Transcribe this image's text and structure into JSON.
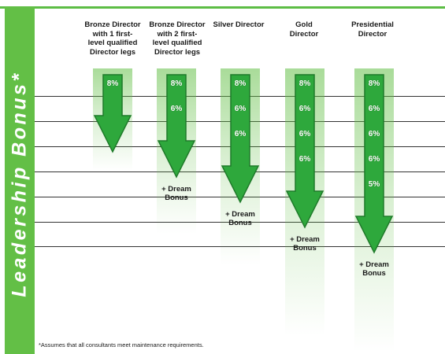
{
  "sidebar": {
    "title": "Leadership Bonus*"
  },
  "columns": [
    {
      "heading": "Bronze Director with 1 first-level qualified Director legs",
      "heading_lines": [
        "Bronze Director",
        "with 1 first-",
        "level qualified",
        "Director legs"
      ],
      "percentages": [
        "8%"
      ],
      "dream_bonus": ""
    },
    {
      "heading": "Bronze Director with 2 first-level qualified Director legs",
      "heading_lines": [
        "Bronze Director",
        "with 2 first-",
        "level qualified",
        "Director legs"
      ],
      "percentages": [
        "8%",
        "6%"
      ],
      "dream_bonus": "+ Dream\nBonus"
    },
    {
      "heading": "Silver Director",
      "heading_lines": [
        "Silver Director"
      ],
      "percentages": [
        "8%",
        "6%",
        "6%"
      ],
      "dream_bonus": "+ Dream\nBonus"
    },
    {
      "heading": "Gold Director",
      "heading_lines": [
        "Gold",
        "Director"
      ],
      "percentages": [
        "8%",
        "6%",
        "6%",
        "6%"
      ],
      "dream_bonus": "+ Dream\nBonus"
    },
    {
      "heading": "Presidential Director",
      "heading_lines": [
        "Presidential",
        "Director"
      ],
      "percentages": [
        "8%",
        "6%",
        "6%",
        "6%",
        "5%"
      ],
      "dream_bonus": "+ Dream\nBonus"
    }
  ],
  "footnote": "*Assumes that all consultants meet maintenance requirements.",
  "colors": {
    "green": "#63bf46",
    "arrow_dark": "#1f7a2a",
    "arrow_fill": "#2ea83c"
  }
}
